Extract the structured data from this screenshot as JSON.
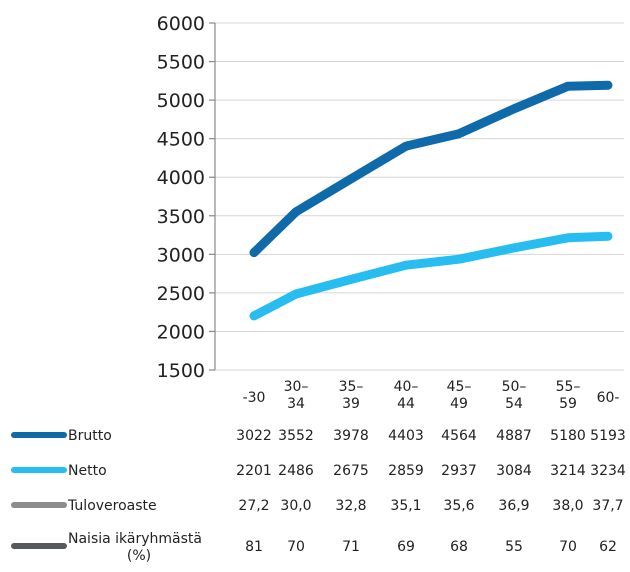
{
  "chart_data": {
    "type": "line",
    "categories": [
      "-30",
      "30–34",
      "35–39",
      "40–44",
      "45–49",
      "50–54",
      "55–59",
      "60-"
    ],
    "category_lines": [
      [
        "-30"
      ],
      [
        "30–",
        "34"
      ],
      [
        "35–",
        "39"
      ],
      [
        "40–",
        "44"
      ],
      [
        "45–",
        "49"
      ],
      [
        "50–",
        "54"
      ],
      [
        "55–",
        "59"
      ],
      [
        "60-"
      ]
    ],
    "ylim": [
      1500,
      6000
    ],
    "yticks": [
      1500,
      2000,
      2500,
      3000,
      3500,
      4000,
      4500,
      5000,
      5500,
      6000
    ],
    "series": [
      {
        "name": "Brutto",
        "values": [
          3022,
          3552,
          3978,
          4403,
          4564,
          4887,
          5180,
          5193
        ],
        "color": "#0e6aa8",
        "plotted": true
      },
      {
        "name": "Netto",
        "values": [
          2201,
          2486,
          2675,
          2859,
          2937,
          3084,
          3214,
          3234
        ],
        "color": "#28bdf0",
        "plotted": true
      }
    ]
  },
  "table": {
    "rows": [
      {
        "label_lines": [
          "Brutto"
        ],
        "color": "#0e6aa8",
        "values": [
          "3022",
          "3552",
          "3978",
          "4403",
          "4564",
          "4887",
          "5180",
          "5193"
        ]
      },
      {
        "label_lines": [
          "Netto"
        ],
        "color": "#28bdf0",
        "values": [
          "2201",
          "2486",
          "2675",
          "2859",
          "2937",
          "3084",
          "3214",
          "3234"
        ]
      },
      {
        "label_lines": [
          "Tuloveroaste"
        ],
        "color": "#8c8c8c",
        "values": [
          "27,2",
          "30,0",
          "32,8",
          "35,1",
          "35,6",
          "36,9",
          "38,0",
          "37,7"
        ]
      },
      {
        "label_lines": [
          "Naisia ikäryhmästä",
          "(%)"
        ],
        "color": "#555a5c",
        "values": [
          "81",
          "70",
          "71",
          "69",
          "68",
          "55",
          "70",
          "62"
        ]
      }
    ]
  }
}
